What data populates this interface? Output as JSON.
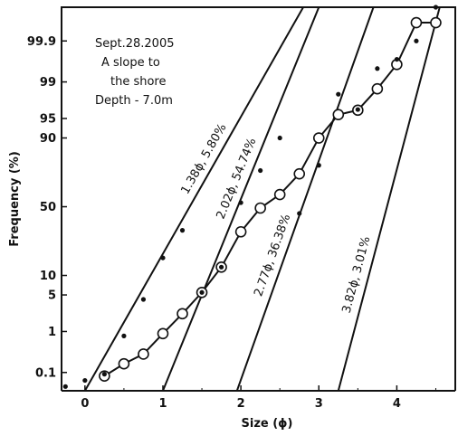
{
  "chart_data": {
    "type": "line",
    "title": "",
    "xlabel": "Size (ϕ)",
    "ylabel": "Frequency (%)",
    "scale": "probability",
    "xlim": [
      -0.3,
      4.75
    ],
    "ylim": [
      0.03,
      99.99
    ],
    "x_ticks": [
      0,
      1,
      2,
      3,
      4
    ],
    "x_tick_labels": [
      "0",
      "1",
      "2",
      "3",
      "4"
    ],
    "y_ticks": [
      0.1,
      1,
      5,
      10,
      50,
      90,
      95,
      99,
      99.9
    ],
    "y_tick_labels": [
      "0.1",
      "1",
      "5",
      "10",
      "50",
      "90",
      "95",
      "99",
      "99.9"
    ],
    "grid": false,
    "annotation_lines": [
      "Sept.28.2005",
      "A slope to",
      "the shore",
      "Depth - 7.0m"
    ],
    "series": [
      {
        "marker": "open-circle",
        "x": [
          0.25,
          0.5,
          0.75,
          1.0,
          1.25,
          1.5,
          1.75,
          2.0,
          2.25,
          2.5,
          2.75,
          3.0,
          3.25,
          3.5,
          3.75,
          4.0,
          4.25,
          4.5
        ],
        "y": [
          0.08,
          0.17,
          0.3,
          0.9,
          2.3,
          5.5,
          13,
          32,
          49,
          59,
          73,
          90,
          95.7,
          96.4,
          98.6,
          99.6,
          99.97,
          99.97
        ]
      },
      {
        "marker": "dot",
        "x": [
          -0.25,
          0.0,
          0.25,
          0.5,
          0.75,
          1.0,
          1.25,
          1.5,
          1.75,
          2.0,
          2.25,
          2.5,
          2.75,
          3.0,
          3.25,
          3.5,
          3.75,
          4.0,
          4.25,
          4.5
        ],
        "y": [
          0.04,
          0.06,
          0.09,
          0.8,
          4.2,
          17,
          33,
          5.5,
          13,
          53,
          75,
          90,
          45,
          78,
          98.2,
          96.5,
          99.5,
          99.7,
          99.9,
          99.99
        ]
      }
    ],
    "lines": [
      {
        "label": "1.38ϕ, 5.80%",
        "p1": [
          0.0,
          0.03
        ],
        "p2": [
          2.8,
          99.99
        ]
      },
      {
        "label": "2.02ϕ, 54.74%",
        "p1": [
          1.0,
          0.03
        ],
        "p2": [
          3.0,
          99.99
        ]
      },
      {
        "label": "2.77ϕ, 36.38%",
        "p1": [
          1.95,
          0.03
        ],
        "p2": [
          3.7,
          99.99
        ]
      },
      {
        "label": "3.82ϕ, 3.01%",
        "p1": [
          3.25,
          0.03
        ],
        "p2": [
          4.55,
          99.99
        ]
      }
    ]
  }
}
